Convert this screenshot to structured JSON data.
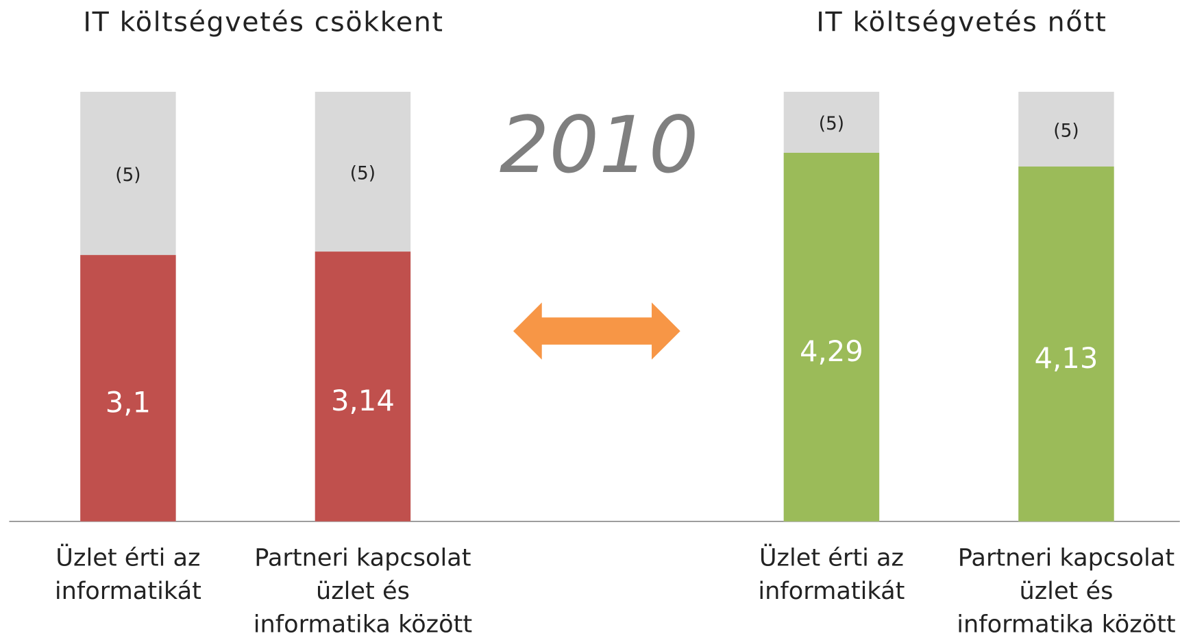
{
  "chart_data": [
    {
      "type": "bar",
      "title": "IT költségvetés csökkent",
      "categories": [
        [
          "Üzlet érti az",
          "informatikát"
        ],
        [
          "Partneri kapcsolat",
          "üzlet és",
          "informatika között"
        ]
      ],
      "values": [
        3.1,
        3.14
      ],
      "value_labels": [
        "3,1",
        "3,14"
      ],
      "color": "#c0504d",
      "max": {
        "values": [
          5,
          5
        ],
        "value_labels": [
          "(5)",
          "(5)"
        ],
        "color": "#d9d9d9"
      },
      "ylim": [
        0,
        5
      ]
    },
    {
      "type": "bar",
      "title": "IT költségvetés nőtt",
      "categories": [
        [
          "Üzlet érti az",
          "informatikát"
        ],
        [
          "Partneri kapcsolat",
          "üzlet és",
          "informatika között"
        ]
      ],
      "values": [
        4.29,
        4.13
      ],
      "value_labels": [
        "4,29",
        "4,13"
      ],
      "color": "#9bbb59",
      "max": {
        "values": [
          5,
          5
        ],
        "value_labels": [
          "(5)",
          "(5)"
        ],
        "color": "#d9d9d9"
      },
      "ylim": [
        0,
        5
      ]
    }
  ],
  "annotation": "2010"
}
